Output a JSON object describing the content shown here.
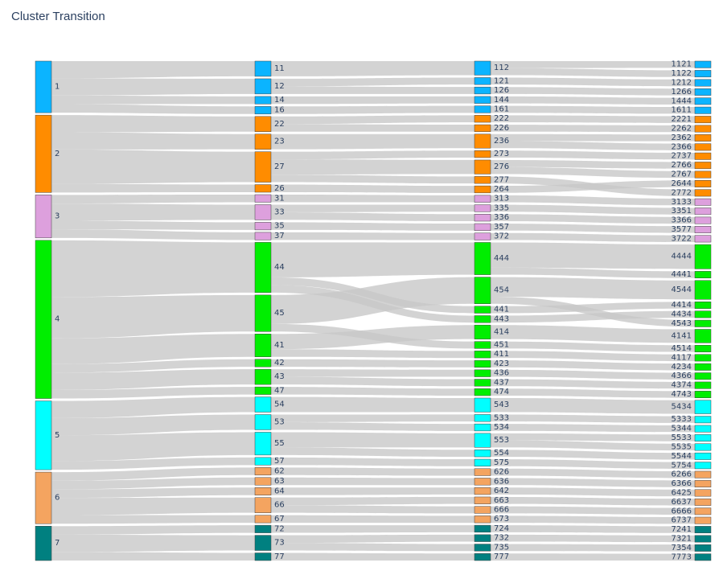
{
  "chart_data": {
    "type": "sankey",
    "title": "Cluster Transition",
    "colors": {
      "1": "#0bb4ff",
      "2": "#ff8c00",
      "3": "#dda0dd",
      "4": "#00ee00",
      "5": "#00ffff",
      "6": "#f4a460",
      "7": "#008080",
      "link": "#c8c8c8"
    },
    "columns": [
      [
        "1",
        "2",
        "3",
        "4",
        "5",
        "6",
        "7"
      ],
      [
        "11",
        "12",
        "14",
        "16",
        "22",
        "23",
        "27",
        "26",
        "31",
        "33",
        "35",
        "37",
        "44",
        "45",
        "41",
        "42",
        "43",
        "47",
        "54",
        "53",
        "55",
        "57",
        "62",
        "63",
        "64",
        "66",
        "67",
        "72",
        "73",
        "77"
      ],
      [
        "112",
        "121",
        "126",
        "144",
        "161",
        "222",
        "226",
        "236",
        "273",
        "276",
        "277",
        "264",
        "313",
        "335",
        "336",
        "357",
        "372",
        "444",
        "454",
        "441",
        "443",
        "414",
        "451",
        "411",
        "423",
        "436",
        "437",
        "474",
        "543",
        "533",
        "534",
        "553",
        "554",
        "575",
        "626",
        "636",
        "642",
        "663",
        "666",
        "673",
        "724",
        "732",
        "735",
        "777"
      ],
      [
        "1121",
        "1122",
        "1212",
        "1266",
        "1444",
        "1611",
        "2221",
        "2262",
        "2362",
        "2366",
        "2737",
        "2766",
        "2767",
        "2644",
        "2772",
        "3133",
        "3351",
        "3366",
        "3577",
        "3722",
        "4444",
        "4441",
        "4544",
        "4414",
        "4434",
        "4543",
        "4141",
        "4514",
        "4117",
        "4234",
        "4366",
        "4374",
        "4743",
        "5434",
        "5333",
        "5344",
        "5533",
        "5535",
        "5544",
        "5754",
        "6266",
        "6366",
        "6425",
        "6637",
        "6666",
        "6737",
        "7241",
        "7321",
        "7354",
        "7773"
      ]
    ],
    "values": {
      "1121": 1,
      "1122": 1,
      "1212": 1,
      "1266": 1,
      "1444": 1,
      "1611": 1,
      "2221": 1,
      "2262": 1,
      "2362": 1,
      "2366": 1,
      "2737": 1,
      "2766": 1,
      "2767": 1,
      "2644": 1,
      "2772": 1,
      "3133": 1,
      "3351": 1,
      "3366": 1,
      "3577": 1,
      "3722": 1,
      "4444": 3.6,
      "4441": 1,
      "4544": 2.8,
      "4414": 1,
      "4434": 1,
      "4543": 1,
      "4141": 2,
      "4514": 1,
      "4117": 1,
      "4234": 1,
      "4366": 1,
      "4374": 1,
      "4743": 1,
      "5434": 2,
      "5333": 1,
      "5344": 1,
      "5533": 1,
      "5535": 1,
      "5544": 1,
      "5754": 1,
      "6266": 1,
      "6366": 1,
      "6425": 1,
      "6637": 1,
      "6666": 1,
      "6737": 1,
      "7241": 1,
      "7321": 1,
      "7354": 1,
      "7773": 1
    },
    "xlabel": "",
    "ylabel": ""
  }
}
